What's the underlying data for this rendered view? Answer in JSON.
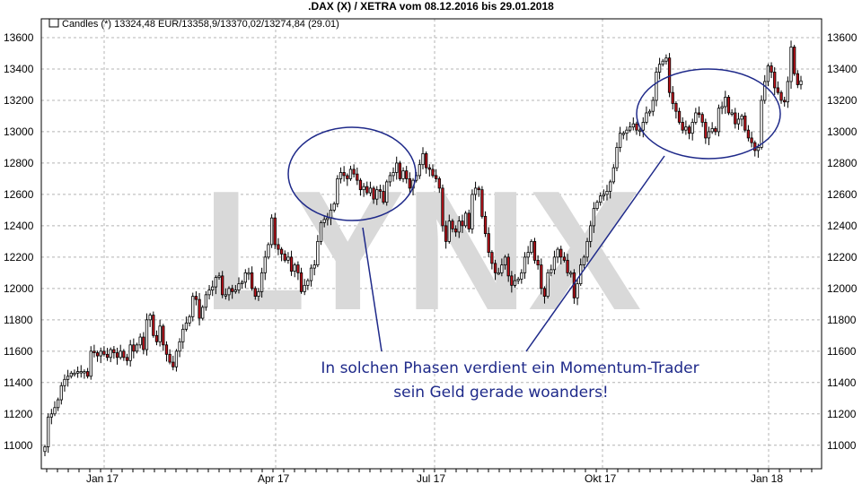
{
  "chart_data": {
    "type": "candlestick",
    "title": ".DAX (X) / XETRA vom 08.12.2016 bis 29.01.2018",
    "legend": {
      "label": "Candles (*) 13324,48 EUR/13358,9/13370,02/13274,84 (29.01)",
      "placement": "top-left"
    },
    "ylim": [
      10850,
      13720
    ],
    "yticks": [
      11000,
      11200,
      11400,
      11600,
      11800,
      12000,
      12200,
      12400,
      12600,
      12800,
      13000,
      13200,
      13400,
      13600
    ],
    "xlabels": [
      "Jan 17",
      "Apr 17",
      "Jul 17",
      "Okt 17",
      "Jan 18"
    ],
    "grid": true,
    "closes": [
      10990,
      11180,
      11200,
      11240,
      11290,
      11380,
      11420,
      11440,
      11460,
      11460,
      11470,
      11470,
      11470,
      11440,
      11600,
      11590,
      11570,
      11600,
      11580,
      11560,
      11610,
      11590,
      11560,
      11600,
      11560,
      11540,
      11640,
      11600,
      11640,
      11690,
      11610,
      11800,
      11830,
      11700,
      11660,
      11760,
      11640,
      11580,
      11530,
      11500,
      11600,
      11660,
      11740,
      11780,
      11820,
      11950,
      11930,
      11810,
      11880,
      11960,
      11990,
      12010,
      12070,
      12080,
      11960,
      11960,
      12000,
      11980,
      11990,
      12030,
      12040,
      12100,
      12100,
      12000,
      11950,
      11980,
      12100,
      12200,
      12280,
      12450,
      12280,
      12250,
      12220,
      12180,
      12200,
      12110,
      12150,
      12100,
      11980,
      12020,
      12050,
      12130,
      12150,
      12300,
      12420,
      12440,
      12450,
      12500,
      12540,
      12700,
      12740,
      12720,
      12700,
      12760,
      12730,
      12690,
      12630,
      12650,
      12610,
      12640,
      12570,
      12630,
      12620,
      12550,
      12680,
      12720,
      12740,
      12800,
      12700,
      12750,
      12700,
      12640,
      12690,
      12720,
      12790,
      12860,
      12770,
      12760,
      12720,
      12700,
      12640,
      12400,
      12300,
      12430,
      12380,
      12360,
      12430,
      12400,
      12480,
      12380,
      12600,
      12640,
      12630,
      12460,
      12350,
      12230,
      12160,
      12100,
      12100,
      12150,
      12200,
      12080,
      12020,
      12050,
      12060,
      12100,
      12200,
      12230,
      12300,
      12180,
      12150,
      12000,
      11950,
      12100,
      12120,
      12200,
      12250,
      12200,
      12180,
      12100,
      12100,
      11940,
      12030,
      12150,
      12200,
      12300,
      12400,
      12510,
      12550,
      12590,
      12600,
      12620,
      12680,
      12770,
      12900,
      12990,
      12990,
      13010,
      13030,
      13050,
      13010,
      13010,
      13060,
      13120,
      13130,
      13200,
      13380,
      13430,
      13450,
      13470,
      13250,
      13180,
      13130,
      13060,
      13010,
      13030,
      12990,
      13060,
      13120,
      13110,
      13060,
      12960,
      13000,
      13020,
      13000,
      13150,
      13160,
      13220,
      13120,
      13120,
      13050,
      13080,
      13100,
      13010,
      12960,
      12930,
      12880,
      12900,
      13200,
      13320,
      13420,
      13380,
      13280,
      13250,
      13200,
      13190,
      13320,
      13540,
      13370,
      13300,
      13324
    ],
    "annotation": {
      "line1": "In solchen Phasen verdient ein Momentum-Trader",
      "line2": "sein Geld gerade woanders!"
    },
    "watermark": "LYNX",
    "colors": {
      "bullish": "#ffffff",
      "bearish": "#c0141c",
      "wick": "#000000",
      "annotation": "#1f2a8a",
      "watermark": "#d9d9d9",
      "grid": "#b4b4b4"
    }
  }
}
